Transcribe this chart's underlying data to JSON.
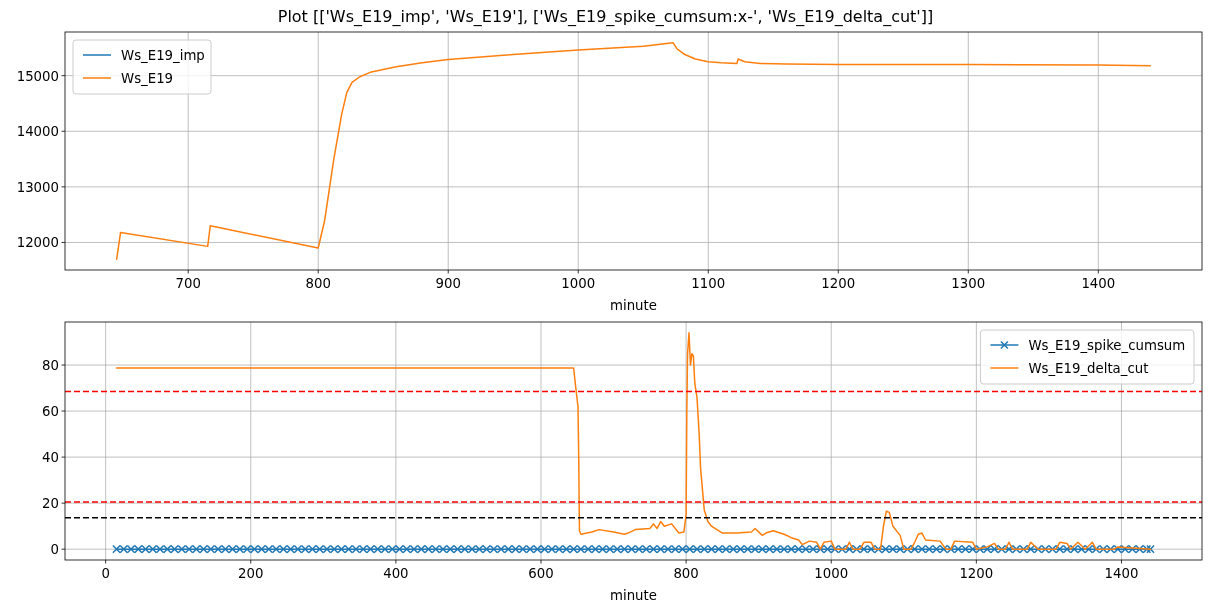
{
  "chart_data": [
    {
      "type": "line",
      "title": "Plot [['Ws_E19_imp', 'Ws_E19'], ['Ws_E19_spike_cumsum:x-', 'Ws_E19_delta_cut']]",
      "xlabel": "minute",
      "xlim": [
        605.25,
        1479.75
      ],
      "xticks": [
        700,
        800,
        900,
        1000,
        1100,
        1200,
        1300,
        1400
      ],
      "ylim": [
        11505,
        15785
      ],
      "yticks": [
        12000,
        13000,
        14000,
        15000
      ],
      "grid": true,
      "legend": "top left",
      "line_style": "solid",
      "marker": "none",
      "x": [
        645,
        648,
        715,
        717,
        800,
        805,
        812,
        818,
        822,
        826,
        832,
        840,
        860,
        880,
        900,
        950,
        1000,
        1050,
        1073,
        1076,
        1082,
        1090,
        1100,
        1110,
        1122,
        1123,
        1128,
        1140,
        1160,
        1200,
        1300,
        1400,
        1440
      ],
      "series": [
        {
          "name": "Ws_E19_imp",
          "color": "#1f77b4",
          "values": [
            null,
            null,
            null,
            null,
            null,
            null,
            null,
            null,
            null,
            null,
            null,
            null,
            null,
            null,
            null,
            null,
            null,
            null,
            null,
            null,
            null,
            null,
            null,
            null,
            null,
            null,
            null,
            null,
            null,
            null,
            null,
            null,
            null
          ]
        },
        {
          "name": "Ws_E19",
          "color": "#ff7f0e",
          "values": [
            11700,
            12180,
            11930,
            12300,
            11900,
            12400,
            13500,
            14300,
            14700,
            14880,
            14980,
            15060,
            15160,
            15230,
            15290,
            15380,
            15460,
            15530,
            15590,
            15480,
            15380,
            15300,
            15250,
            15230,
            15220,
            15300,
            15250,
            15220,
            15210,
            15200,
            15200,
            15190,
            15180
          ]
        }
      ]
    },
    {
      "type": "line",
      "xlabel": "minute",
      "xlim": [
        -56,
        1511
      ],
      "xticks": [
        0,
        200,
        400,
        600,
        800,
        1000,
        1200,
        1400
      ],
      "ylim": [
        -4.7,
        98.7
      ],
      "yticks": [
        0,
        20,
        40,
        60,
        80
      ],
      "grid": true,
      "legend": "top right",
      "line_style": "solid",
      "ref_lines": [
        {
          "axis": "y",
          "value": 68.5,
          "color": "#ff0000",
          "line_style": "dashed"
        },
        {
          "axis": "y",
          "value": 20.5,
          "color": "#ff0000",
          "line_style": "dashed"
        },
        {
          "axis": "y",
          "value": 13.7,
          "color": "#000000",
          "line_style": "dashed"
        }
      ],
      "series": [
        {
          "name": "Ws_E19_spike_cumsum",
          "color": "#1f77b4",
          "marker": "cross",
          "x": [
            15,
            25,
            35,
            45,
            55,
            65,
            75,
            85,
            95,
            105,
            115,
            125,
            135,
            145,
            155,
            165,
            175,
            185,
            195,
            205,
            215,
            225,
            235,
            245,
            255,
            265,
            275,
            285,
            295,
            305,
            315,
            325,
            335,
            345,
            355,
            365,
            375,
            385,
            395,
            405,
            415,
            425,
            435,
            445,
            455,
            465,
            475,
            485,
            495,
            505,
            515,
            525,
            535,
            545,
            555,
            565,
            575,
            585,
            595,
            605,
            615,
            625,
            635,
            645,
            655,
            665,
            675,
            685,
            695,
            705,
            715,
            725,
            735,
            745,
            755,
            765,
            775,
            785,
            795,
            805,
            815,
            825,
            835,
            845,
            855,
            865,
            875,
            885,
            895,
            905,
            915,
            925,
            935,
            945,
            955,
            965,
            975,
            985,
            995,
            1005,
            1015,
            1025,
            1035,
            1045,
            1055,
            1065,
            1075,
            1085,
            1095,
            1105,
            1115,
            1125,
            1135,
            1145,
            1155,
            1165,
            1175,
            1185,
            1195,
            1205,
            1215,
            1225,
            1235,
            1245,
            1255,
            1265,
            1275,
            1285,
            1295,
            1305,
            1315,
            1325,
            1335,
            1345,
            1355,
            1365,
            1375,
            1385,
            1395,
            1405,
            1415,
            1425,
            1435,
            1440
          ],
          "values": [
            0,
            0,
            0,
            0,
            0,
            0,
            0,
            0,
            0,
            0,
            0,
            0,
            0,
            0,
            0,
            0,
            0,
            0,
            0,
            0,
            0,
            0,
            0,
            0,
            0,
            0,
            0,
            0,
            0,
            0,
            0,
            0,
            0,
            0,
            0,
            0,
            0,
            0,
            0,
            0,
            0,
            0,
            0,
            0,
            0,
            0,
            0,
            0,
            0,
            0,
            0,
            0,
            0,
            0,
            0,
            0,
            0,
            0,
            0,
            0,
            0,
            0,
            0,
            0,
            0,
            0,
            0,
            0,
            0,
            0,
            0,
            0,
            0,
            0,
            0,
            0,
            0,
            0,
            0,
            0,
            0,
            0,
            0,
            0,
            0,
            0,
            0,
            0,
            0,
            0,
            0,
            0,
            0,
            0,
            0,
            0,
            0,
            0,
            0,
            0,
            0,
            0,
            0,
            0,
            0,
            0,
            0,
            0,
            0,
            0,
            0,
            0,
            0,
            0,
            0,
            0,
            0,
            0,
            0,
            0,
            0,
            0,
            0,
            0,
            0,
            0,
            0,
            0,
            0,
            0,
            0,
            0,
            0,
            0,
            0,
            0,
            0,
            0,
            0,
            0,
            0,
            0,
            0,
            0
          ]
        },
        {
          "name": "Ws_E19_delta_cut",
          "color": "#ff7f0e",
          "marker": "none",
          "x": [
            15,
            645,
            648,
            651,
            652,
            653,
            655,
            670,
            680,
            700,
            715,
            720,
            730,
            750,
            755,
            760,
            765,
            770,
            780,
            790,
            797,
            800,
            801,
            802,
            804,
            806,
            808,
            810,
            812,
            815,
            818,
            820,
            825,
            830,
            835,
            850,
            870,
            890,
            895,
            905,
            910,
            920,
            935,
            945,
            955,
            960,
            970,
            980,
            985,
            990,
            1000,
            1005,
            1020,
            1025,
            1030,
            1040,
            1045,
            1055,
            1060,
            1068,
            1072,
            1076,
            1080,
            1085,
            1095,
            1100,
            1110,
            1115,
            1120,
            1125,
            1130,
            1150,
            1158,
            1165,
            1170,
            1195,
            1200,
            1215,
            1225,
            1230,
            1240,
            1245,
            1250,
            1270,
            1275,
            1285,
            1310,
            1315,
            1325,
            1330,
            1340,
            1350,
            1360,
            1365,
            1390,
            1395,
            1440
          ],
          "values": [
            78.7,
            78.7,
            70,
            62,
            40,
            8,
            6.5,
            7.5,
            8.5,
            7.5,
            6.5,
            7,
            8.5,
            9,
            11,
            9,
            12,
            10,
            11,
            7,
            7.5,
            15,
            60,
            85,
            94,
            80,
            85,
            84,
            72,
            66,
            50,
            35,
            17,
            12,
            10,
            7,
            7,
            7.5,
            9,
            6,
            7,
            8,
            6.5,
            5,
            4,
            2,
            3.5,
            3,
            0,
            3,
            3.5,
            0,
            0,
            3,
            0,
            0,
            3,
            3,
            0,
            0,
            10,
            16.5,
            16,
            10,
            6,
            0,
            0,
            3,
            6.5,
            7,
            4,
            3.5,
            0,
            0,
            3.5,
            3,
            0,
            1,
            2.5,
            0,
            0,
            3,
            0,
            0,
            3,
            0,
            0,
            3,
            2.5,
            0,
            3,
            0,
            3,
            0,
            0,
            1,
            0
          ]
        }
      ]
    }
  ]
}
